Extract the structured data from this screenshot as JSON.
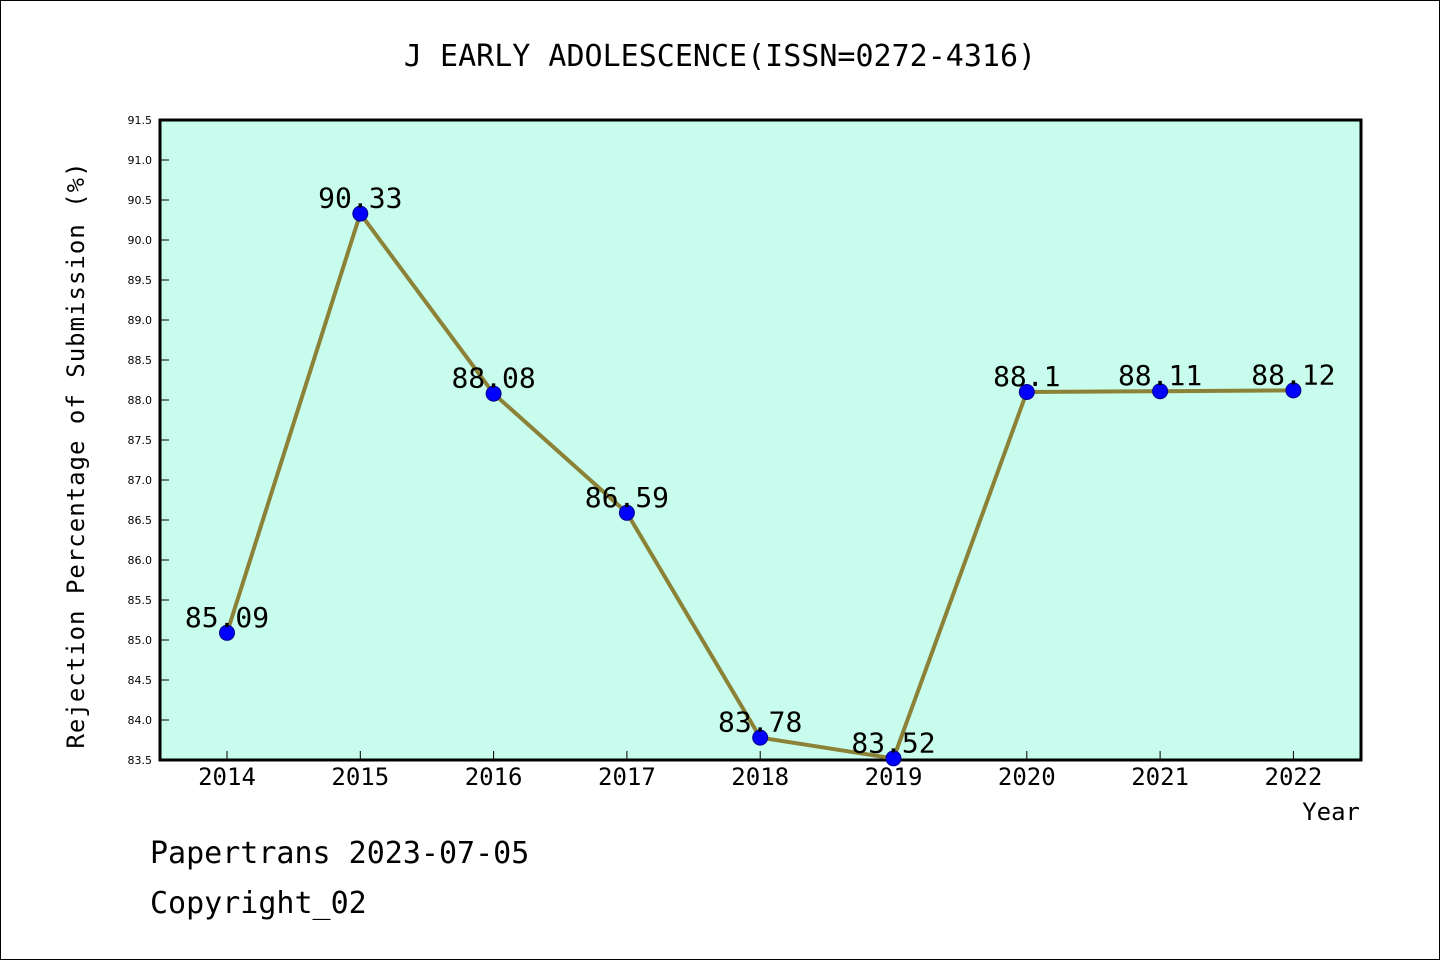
{
  "chart_data": {
    "type": "line",
    "title": "J EARLY ADOLESCENCE(ISSN=0272-4316)",
    "xlabel": "Year",
    "ylabel": "Rejection Percentage of Submission (%)",
    "categories": [
      "2014",
      "2015",
      "2016",
      "2017",
      "2018",
      "2019",
      "2020",
      "2021",
      "2022"
    ],
    "series": [
      {
        "values": [
          85.09,
          90.33,
          88.08,
          86.59,
          83.78,
          83.52,
          88.1,
          88.11,
          88.12
        ],
        "labels": [
          "85.09",
          "90.33",
          "88.08",
          "86.59",
          "83.78",
          "83.52",
          "88.1",
          "88.11",
          "88.12"
        ]
      }
    ],
    "ylim": [
      83.5,
      91.5
    ],
    "yticks": [
      "83.5",
      "84.0",
      "84.5",
      "85.0",
      "85.5",
      "86.0",
      "86.5",
      "87.0",
      "87.5",
      "88.0",
      "88.5",
      "89.0",
      "89.5",
      "90.0",
      "90.5",
      "91.0",
      "91.5"
    ],
    "grid": false,
    "legend": "none",
    "colors": {
      "plot_background": "#c8fcec",
      "line": "#8b8237",
      "marker": "#0000ff",
      "axis": "#000000"
    }
  },
  "footer": {
    "source": "Papertrans 2023-07-05",
    "copyright": "Copyright_02"
  }
}
